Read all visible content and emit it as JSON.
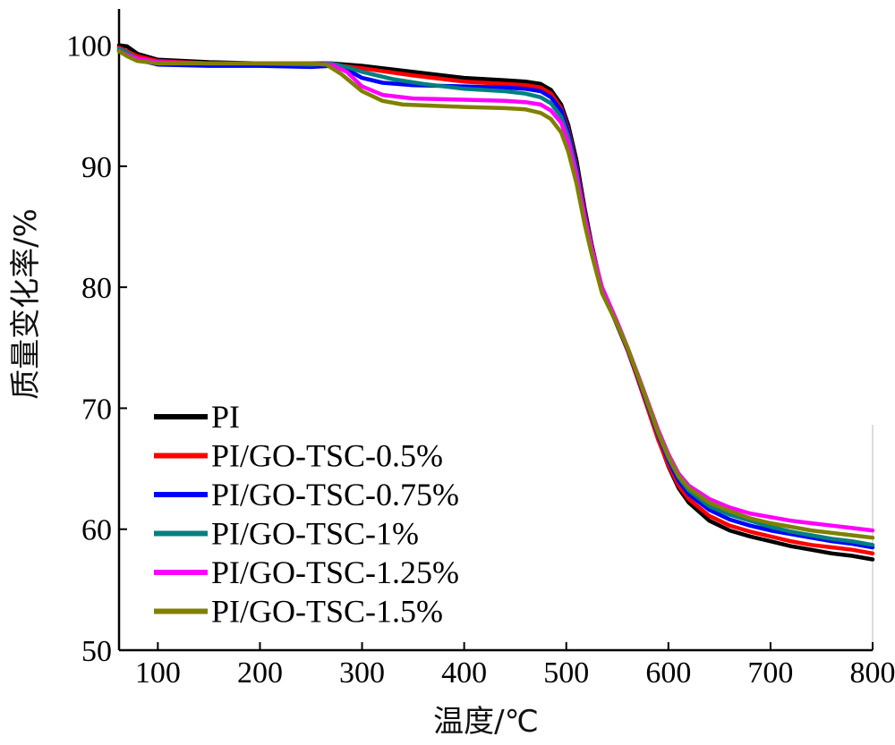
{
  "chart_data": {
    "type": "line",
    "xlabel": "温度/℃",
    "ylabel": "质量变化率/%",
    "xlim": [
      62,
      800
    ],
    "ylim": [
      50,
      103
    ],
    "x_ticks": [
      "100",
      "200",
      "300",
      "400",
      "500",
      "600",
      "700",
      "800"
    ],
    "y_ticks": [
      "50",
      "60",
      "70",
      "80",
      "90",
      "100"
    ],
    "grid": false,
    "legend_position": "bottom-left",
    "series": [
      {
        "name": "PI",
        "color": "#000000",
        "points": [
          [
            62,
            100
          ],
          [
            70,
            99.9
          ],
          [
            80,
            99.3
          ],
          [
            100,
            98.8
          ],
          [
            150,
            98.6
          ],
          [
            200,
            98.5
          ],
          [
            250,
            98.5
          ],
          [
            270,
            98.5
          ],
          [
            300,
            98.3
          ],
          [
            350,
            97.8
          ],
          [
            400,
            97.3
          ],
          [
            440,
            97.1
          ],
          [
            460,
            97.0
          ],
          [
            475,
            96.8
          ],
          [
            485,
            96.3
          ],
          [
            495,
            95.1
          ],
          [
            502,
            93.4
          ],
          [
            510,
            90.5
          ],
          [
            518,
            86.5
          ],
          [
            525,
            83.5
          ],
          [
            535,
            79.8
          ],
          [
            550,
            76.8
          ],
          [
            560,
            74.8
          ],
          [
            570,
            72.5
          ],
          [
            580,
            70.0
          ],
          [
            590,
            67.5
          ],
          [
            600,
            65.2
          ],
          [
            610,
            63.4
          ],
          [
            620,
            62.2
          ],
          [
            640,
            60.7
          ],
          [
            660,
            59.9
          ],
          [
            680,
            59.4
          ],
          [
            700,
            59.0
          ],
          [
            720,
            58.6
          ],
          [
            740,
            58.3
          ],
          [
            760,
            58.0
          ],
          [
            780,
            57.8
          ],
          [
            800,
            57.5
          ]
        ]
      },
      {
        "name": "PI/GO-TSC-0.5%",
        "color": "#ff0000",
        "points": [
          [
            62,
            99.8
          ],
          [
            70,
            99.5
          ],
          [
            80,
            99.1
          ],
          [
            100,
            98.7
          ],
          [
            150,
            98.5
          ],
          [
            200,
            98.4
          ],
          [
            250,
            98.4
          ],
          [
            270,
            98.4
          ],
          [
            300,
            98.1
          ],
          [
            350,
            97.5
          ],
          [
            400,
            97.0
          ],
          [
            440,
            96.8
          ],
          [
            460,
            96.7
          ],
          [
            475,
            96.5
          ],
          [
            485,
            96.0
          ],
          [
            495,
            94.8
          ],
          [
            502,
            93.0
          ],
          [
            510,
            90.0
          ],
          [
            518,
            86.2
          ],
          [
            525,
            83.3
          ],
          [
            535,
            79.9
          ],
          [
            550,
            76.9
          ],
          [
            560,
            74.8
          ],
          [
            570,
            72.4
          ],
          [
            580,
            69.9
          ],
          [
            590,
            67.4
          ],
          [
            600,
            65.3
          ],
          [
            610,
            63.6
          ],
          [
            620,
            62.5
          ],
          [
            640,
            61.1
          ],
          [
            660,
            60.3
          ],
          [
            680,
            59.8
          ],
          [
            700,
            59.4
          ],
          [
            720,
            59.0
          ],
          [
            740,
            58.7
          ],
          [
            760,
            58.5
          ],
          [
            780,
            58.3
          ],
          [
            800,
            58.0
          ]
        ]
      },
      {
        "name": "PI/GO-TSC-0.75%",
        "color": "#0000ff",
        "points": [
          [
            62,
            99.6
          ],
          [
            70,
            99.3
          ],
          [
            80,
            98.8
          ],
          [
            100,
            98.4
          ],
          [
            150,
            98.3
          ],
          [
            200,
            98.3
          ],
          [
            250,
            98.2
          ],
          [
            270,
            98.3
          ],
          [
            285,
            98.0
          ],
          [
            300,
            97.3
          ],
          [
            320,
            96.9
          ],
          [
            350,
            96.7
          ],
          [
            400,
            96.6
          ],
          [
            440,
            96.5
          ],
          [
            460,
            96.4
          ],
          [
            475,
            96.2
          ],
          [
            485,
            95.7
          ],
          [
            495,
            94.6
          ],
          [
            502,
            92.8
          ],
          [
            510,
            89.8
          ],
          [
            518,
            86.0
          ],
          [
            525,
            83.2
          ],
          [
            535,
            79.8
          ],
          [
            550,
            76.9
          ],
          [
            560,
            74.9
          ],
          [
            570,
            72.6
          ],
          [
            580,
            70.2
          ],
          [
            590,
            67.8
          ],
          [
            600,
            65.7
          ],
          [
            610,
            64.0
          ],
          [
            620,
            62.9
          ],
          [
            640,
            61.6
          ],
          [
            660,
            60.8
          ],
          [
            680,
            60.3
          ],
          [
            700,
            59.9
          ],
          [
            720,
            59.6
          ],
          [
            740,
            59.3
          ],
          [
            760,
            59.0
          ],
          [
            780,
            58.8
          ],
          [
            800,
            58.5
          ]
        ]
      },
      {
        "name": "PI/GO-TSC-1%",
        "color": "#008080",
        "points": [
          [
            62,
            99.7
          ],
          [
            70,
            99.4
          ],
          [
            80,
            98.9
          ],
          [
            100,
            98.6
          ],
          [
            150,
            98.5
          ],
          [
            200,
            98.5
          ],
          [
            250,
            98.4
          ],
          [
            270,
            98.5
          ],
          [
            285,
            98.2
          ],
          [
            300,
            97.8
          ],
          [
            330,
            97.2
          ],
          [
            360,
            96.8
          ],
          [
            400,
            96.4
          ],
          [
            440,
            96.2
          ],
          [
            460,
            96.0
          ],
          [
            475,
            95.7
          ],
          [
            485,
            95.2
          ],
          [
            495,
            94.1
          ],
          [
            502,
            92.4
          ],
          [
            510,
            89.5
          ],
          [
            518,
            85.8
          ],
          [
            525,
            83.1
          ],
          [
            535,
            79.7
          ],
          [
            550,
            76.9
          ],
          [
            560,
            75.0
          ],
          [
            570,
            72.7
          ],
          [
            580,
            70.3
          ],
          [
            590,
            67.9
          ],
          [
            600,
            65.9
          ],
          [
            610,
            64.3
          ],
          [
            620,
            63.2
          ],
          [
            640,
            61.9
          ],
          [
            660,
            61.2
          ],
          [
            680,
            60.7
          ],
          [
            700,
            60.2
          ],
          [
            720,
            59.8
          ],
          [
            740,
            59.5
          ],
          [
            760,
            59.2
          ],
          [
            780,
            59.0
          ],
          [
            800,
            58.7
          ]
        ]
      },
      {
        "name": "PI/GO-TSC-1.25%",
        "color": "#ff00ff",
        "points": [
          [
            62,
            99.5
          ],
          [
            70,
            99.2
          ],
          [
            80,
            98.9
          ],
          [
            100,
            98.6
          ],
          [
            150,
            98.5
          ],
          [
            200,
            98.5
          ],
          [
            250,
            98.5
          ],
          [
            270,
            98.4
          ],
          [
            285,
            97.8
          ],
          [
            300,
            96.6
          ],
          [
            320,
            95.9
          ],
          [
            350,
            95.6
          ],
          [
            400,
            95.5
          ],
          [
            440,
            95.4
          ],
          [
            460,
            95.3
          ],
          [
            475,
            95.1
          ],
          [
            485,
            94.6
          ],
          [
            495,
            93.6
          ],
          [
            502,
            92.0
          ],
          [
            510,
            89.3
          ],
          [
            518,
            85.8
          ],
          [
            525,
            83.2
          ],
          [
            535,
            80.0
          ],
          [
            550,
            77.1
          ],
          [
            560,
            75.0
          ],
          [
            570,
            72.8
          ],
          [
            580,
            70.5
          ],
          [
            590,
            68.2
          ],
          [
            600,
            66.2
          ],
          [
            610,
            64.6
          ],
          [
            620,
            63.6
          ],
          [
            640,
            62.5
          ],
          [
            660,
            61.8
          ],
          [
            680,
            61.3
          ],
          [
            700,
            61.0
          ],
          [
            720,
            60.7
          ],
          [
            740,
            60.5
          ],
          [
            760,
            60.3
          ],
          [
            780,
            60.1
          ],
          [
            800,
            59.9
          ]
        ]
      },
      {
        "name": "PI/GO-TSC-1.5%",
        "color": "#808000",
        "points": [
          [
            62,
            99.5
          ],
          [
            70,
            99.1
          ],
          [
            80,
            98.7
          ],
          [
            100,
            98.5
          ],
          [
            150,
            98.5
          ],
          [
            200,
            98.5
          ],
          [
            250,
            98.5
          ],
          [
            265,
            98.4
          ],
          [
            280,
            97.6
          ],
          [
            300,
            96.2
          ],
          [
            320,
            95.4
          ],
          [
            340,
            95.1
          ],
          [
            400,
            94.9
          ],
          [
            440,
            94.8
          ],
          [
            460,
            94.7
          ],
          [
            475,
            94.4
          ],
          [
            485,
            93.9
          ],
          [
            495,
            92.8
          ],
          [
            502,
            91.2
          ],
          [
            510,
            88.6
          ],
          [
            518,
            85.2
          ],
          [
            525,
            82.7
          ],
          [
            535,
            79.5
          ],
          [
            550,
            76.9
          ],
          [
            560,
            75.0
          ],
          [
            570,
            72.7
          ],
          [
            580,
            70.4
          ],
          [
            590,
            68.0
          ],
          [
            600,
            66.0
          ],
          [
            610,
            64.4
          ],
          [
            620,
            63.4
          ],
          [
            640,
            62.2
          ],
          [
            660,
            61.5
          ],
          [
            680,
            60.9
          ],
          [
            700,
            60.5
          ],
          [
            720,
            60.2
          ],
          [
            740,
            59.9
          ],
          [
            760,
            59.7
          ],
          [
            780,
            59.5
          ],
          [
            800,
            59.3
          ]
        ]
      }
    ]
  }
}
